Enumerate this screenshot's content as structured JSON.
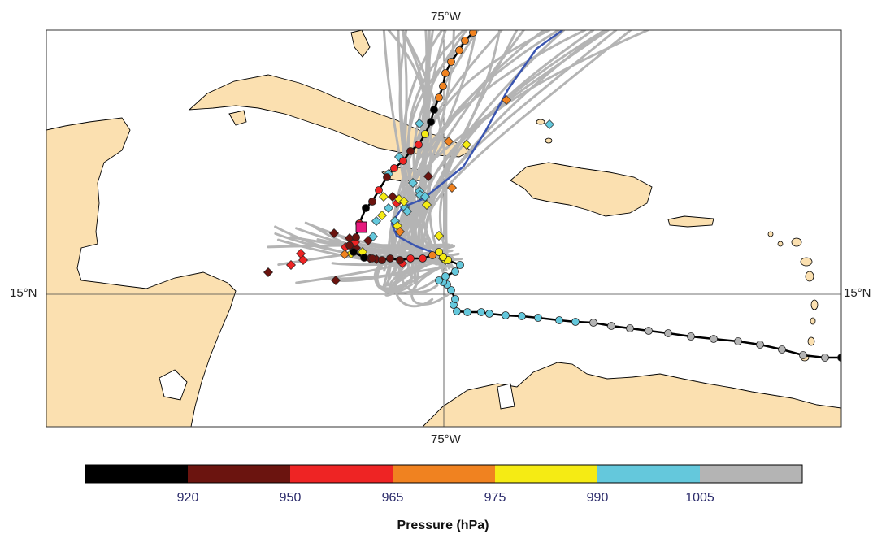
{
  "map": {
    "lon_label_top": "75°W",
    "lon_label_bottom": "75°W",
    "lat_label_left": "15°N",
    "lat_label_right": "15°N",
    "land_color": "#fbe0b0",
    "ocean_color": "#ffffff",
    "ensemble_track_color": "#b4b4b4",
    "observed_track_color": "#000000",
    "mean_track_color": "#3a55b0"
  },
  "colorbar": {
    "title": "Pressure (hPa)",
    "ticks": [
      "920",
      "950",
      "965",
      "975",
      "990",
      "1005"
    ],
    "colors": [
      "#000000",
      "#6b140f",
      "#ee2424",
      "#f08220",
      "#f5eb14",
      "#64c8dc",
      "#b4b4b4"
    ]
  },
  "legend_marks": {
    "observed": "circle",
    "ensemble_endpoints": "diamond",
    "current_position": "pink-square"
  }
}
